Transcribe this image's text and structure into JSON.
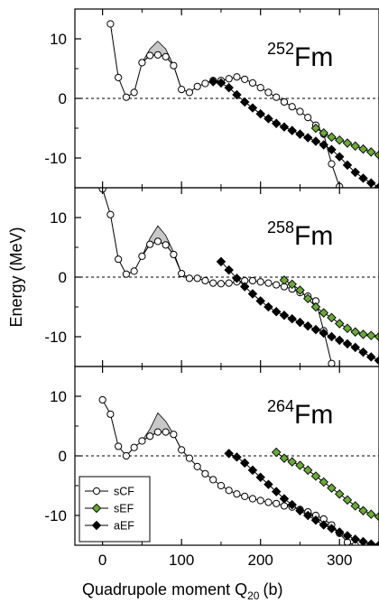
{
  "chart_data": {
    "type": "line",
    "xlabel": "Quadrupole moment Q",
    "xlabel_sub": "20",
    "xlabel_unit": "(b)",
    "ylabel": "Energy (MeV)",
    "xlim": [
      -35,
      350
    ],
    "ylim": [
      -15,
      15
    ],
    "xticks": [
      "0",
      "100",
      "200",
      "300"
    ],
    "yticks": [
      "10",
      "0",
      "-10"
    ],
    "legend": {
      "position": "bottom-left, lowest panel",
      "entries": [
        {
          "label": "sCF",
          "marker": "open-circle",
          "color": "#ffffff"
        },
        {
          "label": "sEF",
          "marker": "diamond",
          "color": "#6aa83b"
        },
        {
          "label": "aEF",
          "marker": "diamond",
          "color": "#000000"
        }
      ]
    },
    "panels": [
      {
        "nucleus_mass": "252",
        "nucleus_symbol": "Fm",
        "series": [
          {
            "name": "sCF",
            "x": [
              10,
              20,
              30,
              40,
              50,
              60,
              70,
              80,
              90,
              100,
              110,
              120,
              130,
              140,
              150,
              160,
              170,
              180,
              190,
              200,
              210,
              220,
              230,
              240,
              250,
              260,
              270,
              280,
              290,
              300
            ],
            "y": [
              12.5,
              3.5,
              0.2,
              1.0,
              6.0,
              7.2,
              7.3,
              7.0,
              5.5,
              1.5,
              1.0,
              2.0,
              2.5,
              3.0,
              3.0,
              3.3,
              3.6,
              3.2,
              2.6,
              1.8,
              1.0,
              0.2,
              -0.6,
              -1.4,
              -2.2,
              -3.2,
              -4.5,
              -6.0,
              -11.0,
              -14.8
            ]
          },
          {
            "name": "sEF",
            "x": [
              270,
              280,
              290,
              300,
              310,
              320,
              330,
              340,
              350
            ],
            "y": [
              -5.0,
              -5.8,
              -6.5,
              -7.0,
              -7.5,
              -8.0,
              -8.5,
              -9.0,
              -9.5
            ]
          },
          {
            "name": "aEF",
            "x": [
              140,
              150,
              160,
              170,
              180,
              190,
              200,
              210,
              220,
              230,
              240,
              250,
              260,
              270,
              280,
              290,
              300,
              310,
              320,
              330,
              340,
              350
            ],
            "y": [
              2.8,
              2.6,
              1.8,
              0.6,
              -0.6,
              -1.6,
              -2.6,
              -3.4,
              -4.2,
              -4.8,
              -5.4,
              -6.0,
              -6.6,
              -7.2,
              -7.8,
              -8.6,
              -9.8,
              -11.2,
              -12.4,
              -13.4,
              -14.2,
              -14.9
            ]
          }
        ],
        "barrier_upper": {
          "x": [
            50,
            60,
            70,
            80,
            90,
            100
          ],
          "y": [
            6.0,
            8.3,
            9.6,
            8.3,
            5.5,
            1.5
          ]
        },
        "barrier_lower": {
          "x": [
            50,
            60,
            70,
            80,
            90,
            100
          ],
          "y": [
            6.0,
            7.2,
            7.3,
            7.0,
            5.5,
            1.5
          ]
        }
      },
      {
        "nucleus_mass": "258",
        "nucleus_symbol": "Fm",
        "series": [
          {
            "name": "sCF",
            "x": [
              0,
              10,
              20,
              30,
              40,
              50,
              60,
              70,
              80,
              90,
              100,
              110,
              120,
              130,
              140,
              150,
              160,
              170,
              180,
              190,
              200,
              210,
              220,
              230,
              240,
              250,
              260,
              270,
              280,
              290
            ],
            "y": [
              14.8,
              10.5,
              3.0,
              0.5,
              1.0,
              3.5,
              5.5,
              6.0,
              5.4,
              3.8,
              0.6,
              -0.2,
              -0.2,
              -0.6,
              -1.0,
              -1.1,
              -1.0,
              -0.8,
              -0.6,
              -0.6,
              -0.8,
              -1.0,
              -1.3,
              -1.6,
              -2.0,
              -2.6,
              -3.2,
              -4.0,
              -9.0,
              -14.5
            ]
          },
          {
            "name": "sEF",
            "x": [
              230,
              240,
              250,
              260,
              270,
              280,
              290,
              300,
              310,
              320,
              330,
              340,
              350
            ],
            "y": [
              -0.5,
              -1.2,
              -2.2,
              -3.6,
              -5.0,
              -6.0,
              -6.8,
              -7.8,
              -8.6,
              -9.2,
              -9.6,
              -9.8,
              -10.0
            ]
          },
          {
            "name": "aEF",
            "x": [
              150,
              160,
              170,
              180,
              190,
              200,
              210,
              220,
              230,
              240,
              250,
              260,
              270,
              280,
              290,
              300,
              310,
              320,
              330,
              340,
              350
            ],
            "y": [
              2.6,
              1.2,
              -0.2,
              -1.6,
              -2.8,
              -4.0,
              -5.0,
              -5.8,
              -6.4,
              -7.0,
              -7.6,
              -8.2,
              -8.8,
              -9.4,
              -10.0,
              -10.6,
              -11.2,
              -11.8,
              -12.6,
              -13.4,
              -14.0
            ]
          }
        ],
        "barrier_upper": {
          "x": [
            50,
            60,
            70,
            80,
            90,
            100
          ],
          "y": [
            3.5,
            6.5,
            8.6,
            7.0,
            4.2,
            0.6
          ]
        },
        "barrier_lower": {
          "x": [
            50,
            60,
            70,
            80,
            90,
            100
          ],
          "y": [
            3.5,
            5.5,
            6.0,
            5.4,
            3.8,
            0.6
          ]
        }
      },
      {
        "nucleus_mass": "264",
        "nucleus_symbol": "Fm",
        "series": [
          {
            "name": "sCF",
            "x": [
              0,
              10,
              20,
              30,
              40,
              50,
              60,
              70,
              80,
              90,
              100,
              110,
              120,
              130,
              140,
              150,
              160,
              170,
              180,
              190,
              200,
              210,
              220,
              230,
              240,
              250,
              260,
              270,
              280,
              290,
              300,
              310,
              320
            ],
            "y": [
              9.4,
              7.0,
              1.6,
              0.0,
              1.4,
              2.5,
              3.3,
              4.0,
              4.0,
              3.6,
              1.0,
              -0.4,
              -1.8,
              -3.0,
              -4.0,
              -5.0,
              -5.8,
              -6.4,
              -6.8,
              -7.2,
              -7.5,
              -7.8,
              -8.0,
              -8.4,
              -8.6,
              -9.0,
              -9.4,
              -10.0,
              -10.6,
              -11.6,
              -13.0,
              -14.5,
              -15.0
            ]
          },
          {
            "name": "sEF",
            "x": [
              220,
              230,
              240,
              250,
              260,
              270,
              280,
              290,
              300,
              310,
              320,
              330,
              340,
              350
            ],
            "y": [
              0.6,
              -0.4,
              -1.0,
              -1.6,
              -2.4,
              -3.4,
              -4.4,
              -5.4,
              -6.4,
              -7.4,
              -8.4,
              -9.2,
              -9.8,
              -10.2
            ]
          },
          {
            "name": "aEF",
            "x": [
              160,
              170,
              180,
              190,
              200,
              210,
              220,
              230,
              240,
              250,
              260,
              270,
              280,
              290,
              300,
              310,
              320,
              330,
              340,
              350
            ],
            "y": [
              0.4,
              -0.2,
              -1.2,
              -2.4,
              -3.6,
              -4.8,
              -6.0,
              -7.2,
              -8.2,
              -9.2,
              -10.0,
              -10.8,
              -11.6,
              -12.2,
              -12.8,
              -13.4,
              -14.0,
              -14.4,
              -14.8,
              -15.0
            ]
          }
        ],
        "barrier_upper": {
          "x": [
            50,
            60,
            70,
            80,
            90,
            100
          ],
          "y": [
            2.5,
            4.5,
            7.2,
            5.8,
            3.6,
            1.0
          ]
        },
        "barrier_lower": {
          "x": [
            50,
            60,
            70,
            80,
            90,
            100
          ],
          "y": [
            2.5,
            3.3,
            4.0,
            4.0,
            3.6,
            1.0
          ]
        }
      }
    ]
  }
}
